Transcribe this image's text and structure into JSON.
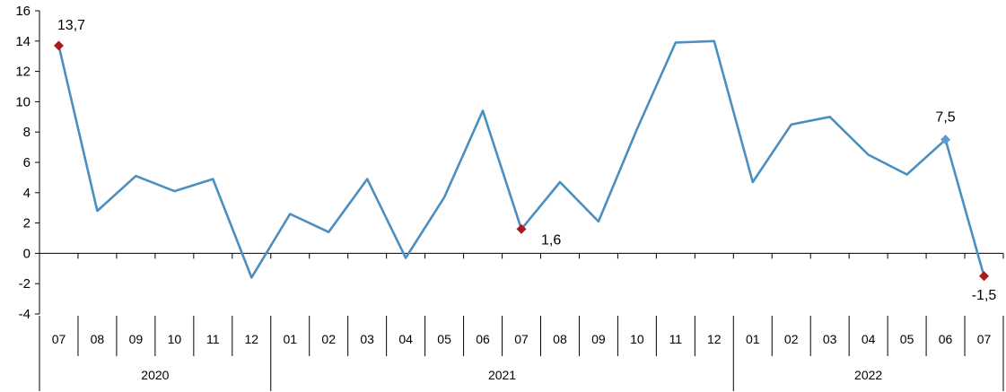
{
  "chart_data": {
    "type": "line",
    "title": "",
    "xlabel": "",
    "ylabel": "",
    "ylim": [
      -4,
      16
    ],
    "yticks": [
      "-4",
      "-2",
      "0",
      "2",
      "4",
      "6",
      "8",
      "10",
      "12",
      "14",
      "16"
    ],
    "grid": false,
    "legend": "none",
    "categories": [
      "07",
      "08",
      "09",
      "10",
      "11",
      "12",
      "01",
      "02",
      "03",
      "04",
      "05",
      "06",
      "07",
      "08",
      "09",
      "10",
      "11",
      "12",
      "01",
      "02",
      "03",
      "04",
      "05",
      "06",
      "07"
    ],
    "years": [
      {
        "label": "2020",
        "start": 0,
        "end": 5
      },
      {
        "label": "2021",
        "start": 6,
        "end": 17
      },
      {
        "label": "2022",
        "start": 18,
        "end": 24
      }
    ],
    "series": [
      {
        "color": "#4a8fc0",
        "values": [
          13.7,
          2.8,
          5.1,
          4.1,
          4.9,
          -1.6,
          2.6,
          1.4,
          4.9,
          -0.3,
          3.7,
          9.4,
          1.6,
          4.7,
          2.1,
          8.2,
          13.9,
          14.0,
          4.7,
          8.5,
          9.0,
          6.5,
          5.2,
          7.5,
          -1.5
        ]
      }
    ],
    "annotations": [
      {
        "index": 0,
        "text": "13,7",
        "marker_color": "#a61c1c"
      },
      {
        "index": 12,
        "text": "1,6",
        "marker_color": "#a61c1c"
      },
      {
        "index": 23,
        "text": "7,5",
        "marker_color": "#5b9bd5"
      },
      {
        "index": 24,
        "text": "-1,5",
        "marker_color": "#a61c1c"
      }
    ]
  }
}
